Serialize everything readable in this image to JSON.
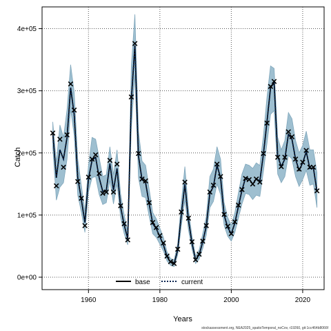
{
  "chart_data": {
    "type": "line",
    "xlabel": "Years",
    "ylabel": "Catch",
    "xlim": [
      1947,
      2026
    ],
    "ylim": [
      -20000,
      435000
    ],
    "x_ticks": [
      1960,
      1980,
      2000,
      2020
    ],
    "x_tick_labels": [
      "1960",
      "1980",
      "2000",
      "2020"
    ],
    "y_ticks": [
      0,
      100000,
      200000,
      300000,
      400000
    ],
    "y_tick_labels": [
      "0e+00",
      "1e+05",
      "2e+05",
      "3e+05",
      "4e+05"
    ],
    "grid": true,
    "legend_position": "bottom-center",
    "footnote": "stockassessment.org, NEA2025_spatioTemporal_noCov, r19260, git:1cc464b8066f",
    "observed_marker": "x",
    "years": [
      1950,
      1951,
      1952,
      1953,
      1954,
      1955,
      1956,
      1957,
      1958,
      1959,
      1960,
      1961,
      1962,
      1963,
      1964,
      1965,
      1966,
      1967,
      1968,
      1969,
      1970,
      1971,
      1972,
      1973,
      1974,
      1975,
      1976,
      1977,
      1978,
      1979,
      1980,
      1981,
      1982,
      1983,
      1984,
      1985,
      1986,
      1987,
      1988,
      1989,
      1990,
      1991,
      1992,
      1993,
      1994,
      1995,
      1996,
      1997,
      1998,
      1999,
      2000,
      2001,
      2002,
      2003,
      2004,
      2005,
      2006,
      2007,
      2008,
      2009,
      2010,
      2011,
      2012,
      2013,
      2014,
      2015,
      2016,
      2017,
      2018,
      2019,
      2020,
      2021,
      2022,
      2023,
      2024
    ],
    "observed": [
      232000,
      147000,
      222000,
      177000,
      229000,
      311000,
      269000,
      154000,
      127000,
      83000,
      161000,
      190000,
      197000,
      167000,
      135000,
      137000,
      188000,
      137000,
      182000,
      115000,
      86000,
      60000,
      290000,
      376000,
      199000,
      158000,
      155000,
      120000,
      88000,
      80000,
      67000,
      55000,
      34000,
      25000,
      22000,
      45000,
      105000,
      153000,
      95000,
      57000,
      28000,
      37000,
      58000,
      83000,
      137000,
      148000,
      182000,
      162000,
      101000,
      82000,
      70000,
      89000,
      116000,
      141000,
      159000,
      157000,
      150000,
      158000,
      153000,
      199000,
      248000,
      307000,
      315000,
      193000,
      178000,
      193000,
      234000,
      226000,
      190000,
      174000,
      185000,
      204000,
      177000,
      177000,
      139000
    ],
    "series": [
      {
        "name": "base",
        "values": [
          232000,
          160000,
          205000,
          190000,
          225000,
          305000,
          262000,
          160000,
          125000,
          88000,
          158000,
          188000,
          193000,
          160000,
          138000,
          140000,
          183000,
          140000,
          175000,
          113000,
          84000,
          62000,
          285000,
          373000,
          195000,
          157000,
          152000,
          118000,
          86000,
          78000,
          65000,
          52000,
          33000,
          24000,
          22000,
          44000,
          100000,
          150000,
          92000,
          55000,
          28000,
          36000,
          57000,
          82000,
          135000,
          146000,
          180000,
          160000,
          100000,
          80000,
          70000,
          87000,
          114000,
          140000,
          160000,
          158000,
          150000,
          158000,
          155000,
          198000,
          250000,
          305000,
          313000,
          195000,
          178000,
          190000,
          230000,
          222000,
          190000,
          172000,
          184000,
          202000,
          175000,
          176000,
          138000
        ]
      },
      {
        "name": "current",
        "values": [
          232000,
          160000,
          205000,
          190000,
          225000,
          305000,
          262000,
          160000,
          125000,
          88000,
          158000,
          188000,
          193000,
          160000,
          138000,
          140000,
          183000,
          140000,
          175000,
          113000,
          84000,
          62000,
          285000,
          373000,
          195000,
          157000,
          152000,
          118000,
          86000,
          78000,
          65000,
          52000,
          33000,
          24000,
          22000,
          44000,
          100000,
          150000,
          92000,
          55000,
          28000,
          36000,
          57000,
          82000,
          135000,
          146000,
          180000,
          160000,
          100000,
          80000,
          70000,
          87000,
          114000,
          140000,
          160000,
          158000,
          150000,
          158000,
          155000,
          198000,
          250000,
          305000,
          313000,
          195000,
          178000,
          190000,
          230000,
          222000,
          190000,
          172000,
          184000,
          202000,
          175000,
          176000,
          138000
        ],
        "lower": [
          208000,
          124000,
          145000,
          152000,
          190000,
          270000,
          228000,
          132000,
          105000,
          72000,
          137000,
          160000,
          162000,
          133000,
          117000,
          120000,
          156000,
          118000,
          150000,
          96000,
          70000,
          52000,
          240000,
          325000,
          160000,
          130000,
          128000,
          98000,
          70000,
          64000,
          53000,
          42000,
          26000,
          19000,
          17000,
          36000,
          82000,
          124000,
          76000,
          45000,
          22000,
          29000,
          46000,
          68000,
          112000,
          122000,
          150000,
          133000,
          83000,
          66000,
          58000,
          72000,
          95000,
          118000,
          135000,
          133000,
          125000,
          132000,
          130000,
          170000,
          215000,
          262000,
          268000,
          166000,
          152000,
          162000,
          196000,
          190000,
          162000,
          146000,
          157000,
          172000,
          148000,
          150000,
          112000
        ],
        "upper": [
          250000,
          185000,
          245000,
          225000,
          270000,
          342000,
          298000,
          190000,
          148000,
          106000,
          180000,
          225000,
          222000,
          192000,
          162000,
          165000,
          210000,
          165000,
          205000,
          134000,
          100000,
          74000,
          340000,
          423000,
          235000,
          187000,
          180000,
          142000,
          104000,
          94000,
          79000,
          64000,
          41000,
          30000,
          28000,
          54000,
          120000,
          178000,
          110000,
          66000,
          34000,
          44000,
          70000,
          98000,
          162000,
          174000,
          210000,
          190000,
          120000,
          96000,
          84000,
          104000,
          136000,
          166000,
          182000,
          180000,
          175000,
          184000,
          180000,
          228000,
          290000,
          340000,
          336000,
          225000,
          205000,
          220000,
          265000,
          255000,
          220000,
          200000,
          212000,
          235000,
          205000,
          205000,
          168000
        ]
      }
    ],
    "colors": {
      "band": "#9ebfd0",
      "band_edge": "#7fa6bb",
      "base": "#000000",
      "current": "#00204d",
      "marker": "#000000",
      "grid": "#555555"
    }
  }
}
